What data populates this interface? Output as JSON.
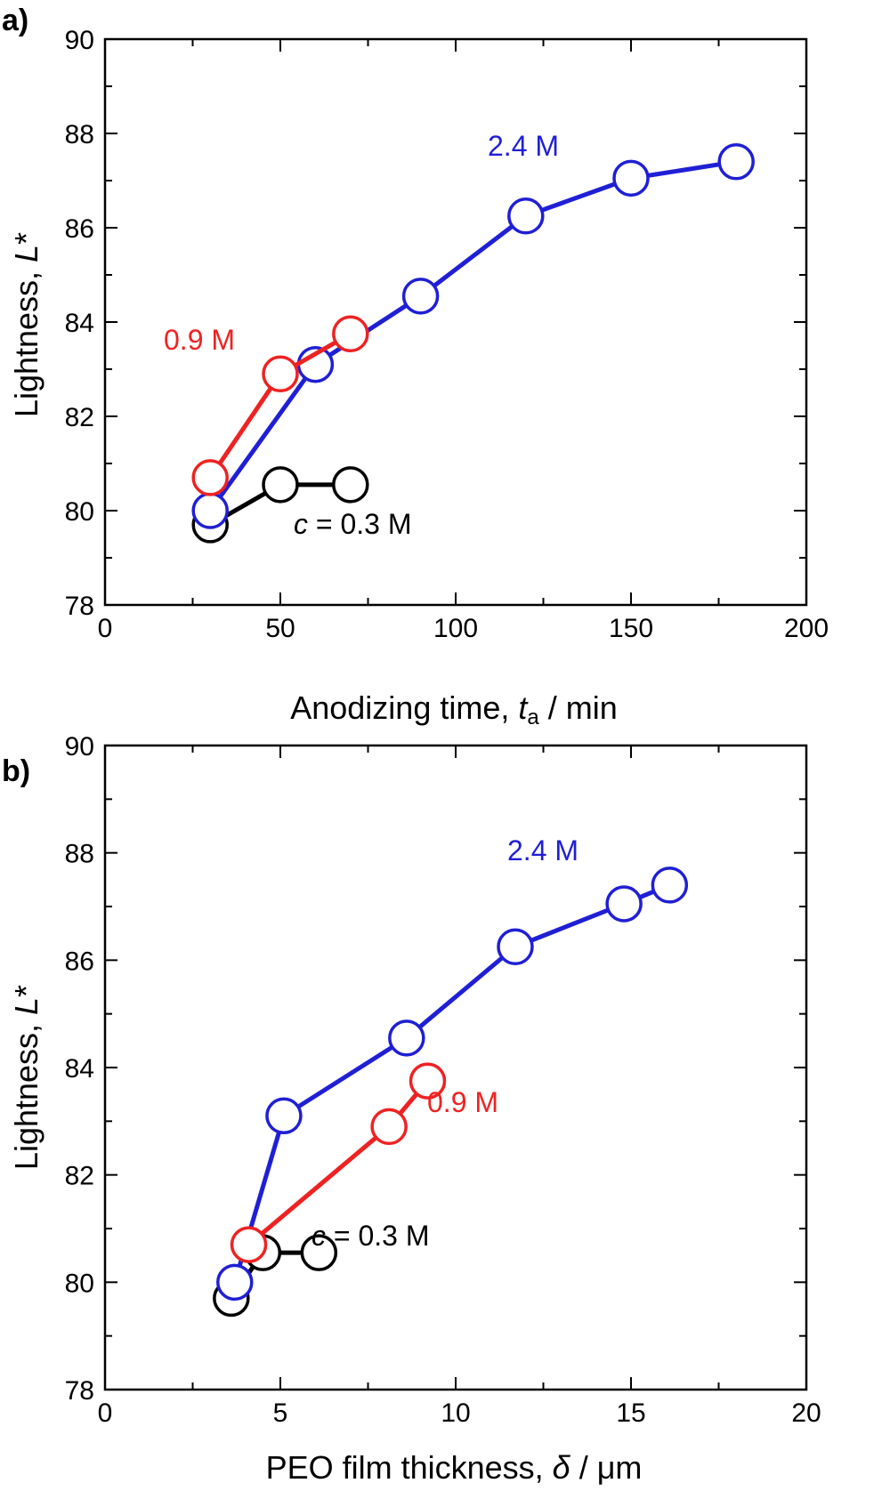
{
  "chart_data": [
    {
      "type": "line",
      "panel_label": "a)",
      "xlabel": "Anodizing time,",
      "xlabel_var": "t",
      "xlabel_sub": "a",
      "xlabel_unit": " / min",
      "ylabel": "Lightness,",
      "ylabel_var": "L",
      "ylabel_star": "*",
      "xlim": [
        0,
        200
      ],
      "ylim": [
        78,
        90
      ],
      "xticks": [
        0,
        50,
        100,
        150,
        200
      ],
      "xtick_labels": [
        "0",
        "50",
        "100",
        "150",
        "200"
      ],
      "yticks": [
        78,
        80,
        82,
        84,
        86,
        88,
        90
      ],
      "ytick_labels": [
        "78",
        "80",
        "82",
        "84",
        "86",
        "88",
        "90"
      ],
      "series": [
        {
          "name": "c = 0.3 M",
          "label_var": "c",
          "label_rest": " = 0.3 M",
          "color": "#000000",
          "x": [
            30,
            50,
            70
          ],
          "y": [
            79.7,
            80.55,
            80.55
          ]
        },
        {
          "name": "2.4 M",
          "label_var": "",
          "label_rest": "2.4 M",
          "color": "#1f1fd6",
          "x": [
            30,
            60,
            90,
            120,
            150,
            180
          ],
          "y": [
            80.0,
            83.1,
            84.55,
            86.25,
            87.05,
            87.4
          ]
        },
        {
          "name": "0.9 M",
          "label_var": "",
          "label_rest": "0.9 M",
          "color": "#ee2222",
          "x": [
            30,
            50,
            70
          ],
          "y": [
            80.7,
            82.9,
            83.75
          ]
        }
      ]
    },
    {
      "type": "line",
      "panel_label": "b)",
      "xlabel": "PEO film thickness,",
      "xlabel_var": "δ",
      "xlabel_sub": "",
      "xlabel_unit": "  / μm",
      "ylabel": "Lightness,",
      "ylabel_var": "L",
      "ylabel_star": "*",
      "xlim": [
        0,
        20
      ],
      "ylim": [
        78,
        90
      ],
      "xticks": [
        0,
        5,
        10,
        15,
        20
      ],
      "xtick_labels": [
        "0",
        "5",
        "10",
        "15",
        "20"
      ],
      "yticks": [
        78,
        80,
        82,
        84,
        86,
        88,
        90
      ],
      "ytick_labels": [
        "78",
        "80",
        "82",
        "84",
        "86",
        "88",
        "90"
      ],
      "series": [
        {
          "name": "c = 0.3 M",
          "label_var": "c",
          "label_rest": " = 0.3 M",
          "color": "#000000",
          "x": [
            3.6,
            4.5,
            6.1
          ],
          "y": [
            79.7,
            80.55,
            80.55
          ]
        },
        {
          "name": "2.4 M",
          "label_var": "",
          "label_rest": "2.4 M",
          "color": "#1f1fd6",
          "x": [
            3.7,
            5.1,
            8.6,
            11.7,
            14.8,
            16.1
          ],
          "y": [
            80.0,
            83.1,
            84.55,
            86.25,
            87.05,
            87.4
          ]
        },
        {
          "name": "0.9 M",
          "label_var": "",
          "label_rest": "0.9 M",
          "color": "#ee2222",
          "x": [
            4.1,
            8.1,
            9.2
          ],
          "y": [
            80.7,
            82.9,
            83.75
          ]
        }
      ]
    }
  ]
}
